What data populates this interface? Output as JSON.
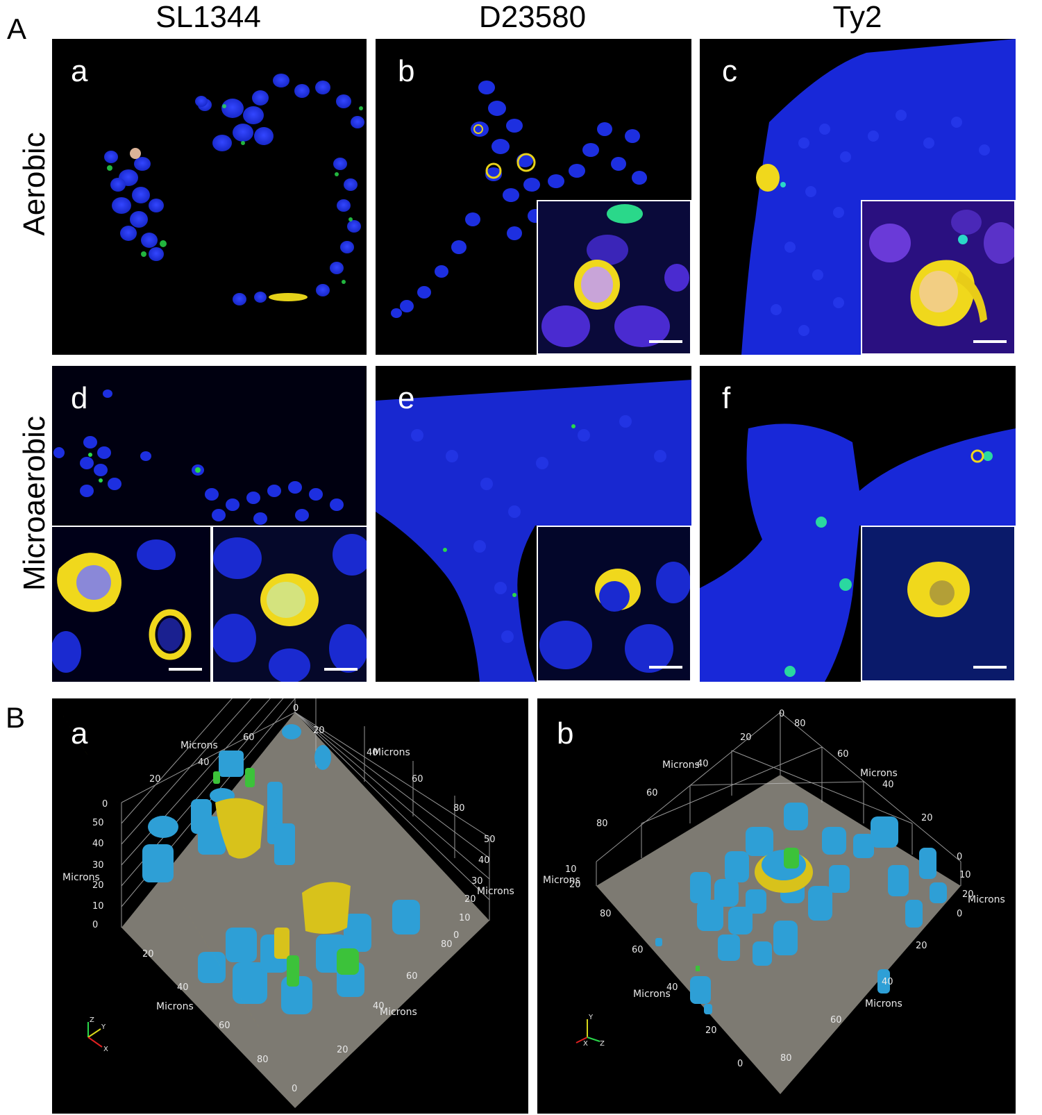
{
  "section_a": {
    "label": "A",
    "columns": [
      "SL1344",
      "D23580",
      "Ty2"
    ],
    "rows": [
      "Aerobic",
      "Microaerobic"
    ],
    "panels": [
      "a",
      "b",
      "c",
      "d",
      "e",
      "f"
    ]
  },
  "section_b": {
    "label": "B",
    "panels": [
      {
        "label": "a",
        "axis_word": "Microns",
        "ticks_back": [
          "0",
          "20",
          "40",
          "60",
          "80"
        ],
        "ticks_left": [
          "0",
          "20",
          "40",
          "60"
        ],
        "ticks_right": [
          "40",
          "60",
          "80"
        ],
        "ticks_z_left": [
          "0",
          "10",
          "20",
          "30",
          "40",
          "50"
        ],
        "ticks_z_right": [
          "0",
          "10",
          "20",
          "30",
          "40",
          "50"
        ],
        "ticks_front_left": [
          "0",
          "20",
          "40",
          "60",
          "80"
        ],
        "ticks_front_right": [
          "0",
          "20",
          "40",
          "60",
          "80"
        ],
        "triad": [
          "Z",
          "Y",
          "X"
        ]
      },
      {
        "label": "b",
        "axis_word": "Microns",
        "ticks_top": [
          "0",
          "80",
          "60",
          "40",
          "20"
        ],
        "ticks_left_top": [
          "20",
          "40",
          "60",
          "80"
        ],
        "ticks_z_left": [
          "10",
          "20"
        ],
        "ticks_z_right": [
          "0",
          "10",
          "20"
        ],
        "ticks_right": [
          "0",
          "20",
          "40",
          "60",
          "80"
        ],
        "ticks_bottom_left": [
          "80",
          "60",
          "40",
          "20",
          "0"
        ],
        "ticks_bottom_right": [
          "0",
          "20",
          "40",
          "60",
          "80"
        ],
        "triad": [
          "Y",
          "X",
          "Z"
        ]
      }
    ]
  },
  "colors": {
    "nuclei": "#1b2ee8",
    "yellow_cell": "#f2df1c",
    "green_bacteria": "#36e24a",
    "render_blue": "#2e9fd6",
    "render_yellow": "#d8c21b",
    "render_green": "#3cc23a",
    "floor_gray": "#7d7a72"
  }
}
